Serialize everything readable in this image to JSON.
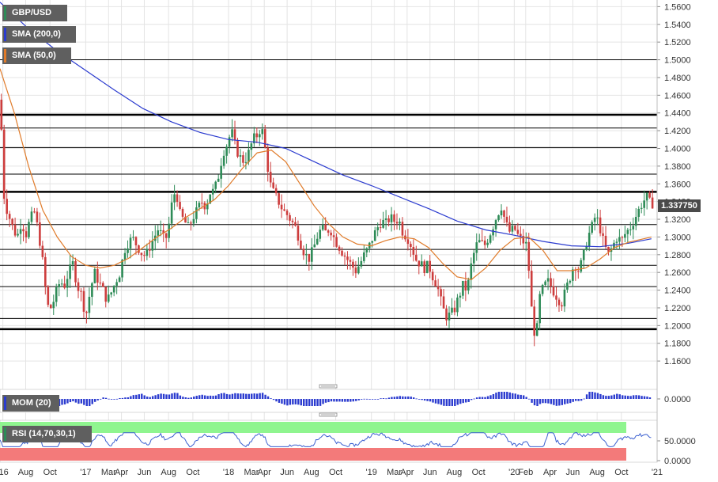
{
  "legend": {
    "price": "GBP/USD",
    "sma200": "SMA (200,0)",
    "sma50": "SMA (50,0)",
    "mom": "MOM (20)",
    "rsi": "RSI (14,70,30,1)"
  },
  "colors": {
    "up": "#2e8b57",
    "down": "#cd3d3d",
    "sma200": "#2b3bcf",
    "sma50": "#e07b2a",
    "rsi_line": "#3a5fd0",
    "rsi_overbought": "#8ff58f",
    "rsi_oversold": "#f37a7a",
    "grid": "#e4e4e4",
    "hline": "#000000",
    "price_swatch": "#2e8b57",
    "sma200_swatch": "#2b3bcf",
    "sma50_swatch": "#e07b2a",
    "mom_swatch": "#2b3bcf",
    "rsi_swatch": "#2e8b57"
  },
  "last_price": "1.337750",
  "chart_data": {
    "type": "candlestick",
    "price_axis": {
      "min": 1.14,
      "max": 1.565,
      "ticks": [
        "1.1600",
        "1.1800",
        "1.2000",
        "1.2200",
        "1.2400",
        "1.2600",
        "1.2800",
        "1.3000",
        "1.3200",
        "1.3400",
        "1.3600",
        "1.3800",
        "1.4000",
        "1.4200",
        "1.4400",
        "1.4600",
        "1.4800",
        "1.5000",
        "1.5200",
        "1.5400",
        "1.5600"
      ]
    },
    "horizontal_levels": [
      {
        "value": 1.5,
        "width": 1
      },
      {
        "value": 1.438,
        "width": 2.5
      },
      {
        "value": 1.423,
        "width": 1
      },
      {
        "value": 1.401,
        "width": 1
      },
      {
        "value": 1.371,
        "width": 1
      },
      {
        "value": 1.351,
        "width": 2.5
      },
      {
        "value": 1.314,
        "width": 1
      },
      {
        "value": 1.286,
        "width": 1
      },
      {
        "value": 1.268,
        "width": 1
      },
      {
        "value": 1.244,
        "width": 1
      },
      {
        "value": 1.208,
        "width": 1
      },
      {
        "value": 1.196,
        "width": 2.5
      }
    ],
    "time_axis": {
      "start": 2016.4,
      "end": 2021.0,
      "ticks": [
        {
          "label": "'16",
          "t": 2016.42
        },
        {
          "label": "Aug",
          "t": 2016.58
        },
        {
          "label": "Oct",
          "t": 2016.75
        },
        {
          "label": "'17",
          "t": 2017.0
        },
        {
          "label": "Mar",
          "t": 2017.16
        },
        {
          "label": "Apr",
          "t": 2017.25
        },
        {
          "label": "Jun",
          "t": 2017.41
        },
        {
          "label": "Aug",
          "t": 2017.58
        },
        {
          "label": "Oct",
          "t": 2017.75
        },
        {
          "label": "'18",
          "t": 2018.0
        },
        {
          "label": "Mar",
          "t": 2018.16
        },
        {
          "label": "Apr",
          "t": 2018.25
        },
        {
          "label": "Jun",
          "t": 2018.41
        },
        {
          "label": "Aug",
          "t": 2018.58
        },
        {
          "label": "Oct",
          "t": 2018.75
        },
        {
          "label": "'19",
          "t": 2019.0
        },
        {
          "label": "Mar",
          "t": 2019.16
        },
        {
          "label": "Apr",
          "t": 2019.25
        },
        {
          "label": "Jun",
          "t": 2019.41
        },
        {
          "label": "Aug",
          "t": 2019.58
        },
        {
          "label": "Oct",
          "t": 2019.75
        },
        {
          "label": "'20",
          "t": 2020.0
        },
        {
          "label": "Feb",
          "t": 2020.08
        },
        {
          "label": "Apr",
          "t": 2020.25
        },
        {
          "label": "Jun",
          "t": 2020.41
        },
        {
          "label": "Aug",
          "t": 2020.58
        },
        {
          "label": "Oct",
          "t": 2020.75
        },
        {
          "label": "'21",
          "t": 2021.0
        }
      ]
    },
    "price_path": [
      [
        2016.4,
        1.455
      ],
      [
        2016.42,
        1.42
      ],
      [
        2016.44,
        1.34
      ],
      [
        2016.47,
        1.325
      ],
      [
        2016.5,
        1.31
      ],
      [
        2016.53,
        1.3
      ],
      [
        2016.56,
        1.318
      ],
      [
        2016.59,
        1.302
      ],
      [
        2016.62,
        1.32
      ],
      [
        2016.65,
        1.328
      ],
      [
        2016.68,
        1.305
      ],
      [
        2016.71,
        1.27
      ],
      [
        2016.74,
        1.222
      ],
      [
        2016.77,
        1.22
      ],
      [
        2016.8,
        1.236
      ],
      [
        2016.83,
        1.25
      ],
      [
        2016.86,
        1.245
      ],
      [
        2016.89,
        1.26
      ],
      [
        2016.92,
        1.27
      ],
      [
        2016.95,
        1.245
      ],
      [
        2016.98,
        1.235
      ],
      [
        2017.01,
        1.21
      ],
      [
        2017.04,
        1.238
      ],
      [
        2017.07,
        1.26
      ],
      [
        2017.1,
        1.25
      ],
      [
        2017.13,
        1.24
      ],
      [
        2017.16,
        1.228
      ],
      [
        2017.19,
        1.238
      ],
      [
        2017.22,
        1.25
      ],
      [
        2017.25,
        1.26
      ],
      [
        2017.28,
        1.285
      ],
      [
        2017.31,
        1.295
      ],
      [
        2017.34,
        1.298
      ],
      [
        2017.37,
        1.29
      ],
      [
        2017.4,
        1.282
      ],
      [
        2017.43,
        1.278
      ],
      [
        2017.46,
        1.29
      ],
      [
        2017.49,
        1.3
      ],
      [
        2017.52,
        1.31
      ],
      [
        2017.55,
        1.298
      ],
      [
        2017.58,
        1.3
      ],
      [
        2017.61,
        1.335
      ],
      [
        2017.64,
        1.355
      ],
      [
        2017.67,
        1.325
      ],
      [
        2017.7,
        1.318
      ],
      [
        2017.73,
        1.31
      ],
      [
        2017.76,
        1.322
      ],
      [
        2017.79,
        1.33
      ],
      [
        2017.82,
        1.34
      ],
      [
        2017.85,
        1.335
      ],
      [
        2017.88,
        1.35
      ],
      [
        2017.91,
        1.352
      ],
      [
        2017.94,
        1.37
      ],
      [
        2017.97,
        1.395
      ],
      [
        2018.0,
        1.405
      ],
      [
        2018.03,
        1.42
      ],
      [
        2018.06,
        1.4
      ],
      [
        2018.09,
        1.39
      ],
      [
        2018.12,
        1.385
      ],
      [
        2018.15,
        1.395
      ],
      [
        2018.18,
        1.41
      ],
      [
        2018.21,
        1.415
      ],
      [
        2018.24,
        1.425
      ],
      [
        2018.27,
        1.395
      ],
      [
        2018.3,
        1.36
      ],
      [
        2018.33,
        1.348
      ],
      [
        2018.36,
        1.34
      ],
      [
        2018.39,
        1.33
      ],
      [
        2018.42,
        1.325
      ],
      [
        2018.45,
        1.318
      ],
      [
        2018.48,
        1.31
      ],
      [
        2018.51,
        1.295
      ],
      [
        2018.54,
        1.282
      ],
      [
        2018.57,
        1.275
      ],
      [
        2018.6,
        1.285
      ],
      [
        2018.63,
        1.3
      ],
      [
        2018.66,
        1.31
      ],
      [
        2018.69,
        1.305
      ],
      [
        2018.72,
        1.31
      ],
      [
        2018.75,
        1.298
      ],
      [
        2018.78,
        1.29
      ],
      [
        2018.81,
        1.282
      ],
      [
        2018.84,
        1.275
      ],
      [
        2018.87,
        1.268
      ],
      [
        2018.9,
        1.262
      ],
      [
        2018.93,
        1.27
      ],
      [
        2018.96,
        1.28
      ],
      [
        2018.99,
        1.288
      ],
      [
        2019.02,
        1.3
      ],
      [
        2019.05,
        1.31
      ],
      [
        2019.08,
        1.318
      ],
      [
        2019.11,
        1.315
      ],
      [
        2019.14,
        1.322
      ],
      [
        2019.17,
        1.318
      ],
      [
        2019.2,
        1.32
      ],
      [
        2019.23,
        1.305
      ],
      [
        2019.26,
        1.3
      ],
      [
        2019.29,
        1.29
      ],
      [
        2019.32,
        1.275
      ],
      [
        2019.35,
        1.27
      ],
      [
        2019.38,
        1.265
      ],
      [
        2019.41,
        1.268
      ],
      [
        2019.44,
        1.255
      ],
      [
        2019.47,
        1.245
      ],
      [
        2019.5,
        1.225
      ],
      [
        2019.53,
        1.21
      ],
      [
        2019.56,
        1.212
      ],
      [
        2019.59,
        1.218
      ],
      [
        2019.62,
        1.232
      ],
      [
        2019.65,
        1.245
      ],
      [
        2019.68,
        1.24
      ],
      [
        2019.71,
        1.27
      ],
      [
        2019.74,
        1.29
      ],
      [
        2019.77,
        1.295
      ],
      [
        2019.8,
        1.29
      ],
      [
        2019.83,
        1.3
      ],
      [
        2019.86,
        1.312
      ],
      [
        2019.89,
        1.325
      ],
      [
        2019.92,
        1.335
      ],
      [
        2019.95,
        1.315
      ],
      [
        2019.98,
        1.305
      ],
      [
        2020.01,
        1.31
      ],
      [
        2020.04,
        1.3
      ],
      [
        2020.07,
        1.295
      ],
      [
        2020.1,
        1.29
      ],
      [
        2020.13,
        1.22
      ],
      [
        2020.16,
        1.18
      ],
      [
        2020.19,
        1.235
      ],
      [
        2020.22,
        1.245
      ],
      [
        2020.25,
        1.25
      ],
      [
        2020.28,
        1.24
      ],
      [
        2020.31,
        1.232
      ],
      [
        2020.34,
        1.225
      ],
      [
        2020.37,
        1.24
      ],
      [
        2020.4,
        1.255
      ],
      [
        2020.43,
        1.27
      ],
      [
        2020.46,
        1.262
      ],
      [
        2020.49,
        1.275
      ],
      [
        2020.52,
        1.298
      ],
      [
        2020.55,
        1.31
      ],
      [
        2020.58,
        1.325
      ],
      [
        2020.61,
        1.31
      ],
      [
        2020.64,
        1.29
      ],
      [
        2020.67,
        1.28
      ],
      [
        2020.7,
        1.29
      ],
      [
        2020.73,
        1.3
      ],
      [
        2020.76,
        1.295
      ],
      [
        2020.79,
        1.305
      ],
      [
        2020.82,
        1.31
      ],
      [
        2020.85,
        1.32
      ],
      [
        2020.88,
        1.33
      ],
      [
        2020.91,
        1.34
      ],
      [
        2020.94,
        1.345
      ],
      [
        2020.96,
        1.338
      ]
    ],
    "sma200_path": [
      [
        2016.4,
        1.565
      ],
      [
        2016.6,
        1.535
      ],
      [
        2016.8,
        1.51
      ],
      [
        2017.0,
        1.488
      ],
      [
        2017.2,
        1.466
      ],
      [
        2017.4,
        1.445
      ],
      [
        2017.6,
        1.43
      ],
      [
        2017.8,
        1.418
      ],
      [
        2018.0,
        1.41
      ],
      [
        2018.2,
        1.407
      ],
      [
        2018.4,
        1.4
      ],
      [
        2018.6,
        1.385
      ],
      [
        2018.8,
        1.37
      ],
      [
        2019.0,
        1.358
      ],
      [
        2019.2,
        1.345
      ],
      [
        2019.4,
        1.332
      ],
      [
        2019.6,
        1.318
      ],
      [
        2019.8,
        1.308
      ],
      [
        2020.0,
        1.302
      ],
      [
        2020.2,
        1.295
      ],
      [
        2020.4,
        1.29
      ],
      [
        2020.6,
        1.289
      ],
      [
        2020.8,
        1.293
      ],
      [
        2020.96,
        1.298
      ]
    ],
    "sma50_path": [
      [
        2016.4,
        1.49
      ],
      [
        2016.5,
        1.44
      ],
      [
        2016.6,
        1.38
      ],
      [
        2016.7,
        1.33
      ],
      [
        2016.8,
        1.3
      ],
      [
        2016.9,
        1.278
      ],
      [
        2017.0,
        1.268
      ],
      [
        2017.1,
        1.265
      ],
      [
        2017.2,
        1.268
      ],
      [
        2017.3,
        1.276
      ],
      [
        2017.4,
        1.288
      ],
      [
        2017.5,
        1.3
      ],
      [
        2017.6,
        1.31
      ],
      [
        2017.7,
        1.322
      ],
      [
        2017.8,
        1.332
      ],
      [
        2017.9,
        1.342
      ],
      [
        2018.0,
        1.358
      ],
      [
        2018.1,
        1.378
      ],
      [
        2018.2,
        1.395
      ],
      [
        2018.3,
        1.398
      ],
      [
        2018.4,
        1.385
      ],
      [
        2018.5,
        1.36
      ],
      [
        2018.6,
        1.335
      ],
      [
        2018.7,
        1.315
      ],
      [
        2018.8,
        1.3
      ],
      [
        2018.9,
        1.292
      ],
      [
        2019.0,
        1.29
      ],
      [
        2019.1,
        1.296
      ],
      [
        2019.2,
        1.3
      ],
      [
        2019.3,
        1.298
      ],
      [
        2019.4,
        1.288
      ],
      [
        2019.5,
        1.27
      ],
      [
        2019.6,
        1.255
      ],
      [
        2019.7,
        1.252
      ],
      [
        2019.8,
        1.265
      ],
      [
        2019.9,
        1.285
      ],
      [
        2020.0,
        1.298
      ],
      [
        2020.1,
        1.3
      ],
      [
        2020.2,
        1.285
      ],
      [
        2020.3,
        1.262
      ],
      [
        2020.4,
        1.262
      ],
      [
        2020.5,
        1.265
      ],
      [
        2020.6,
        1.275
      ],
      [
        2020.7,
        1.288
      ],
      [
        2020.8,
        1.294
      ],
      [
        2020.96,
        1.3
      ]
    ],
    "mom_axis": {
      "ticks": [
        "0.0000"
      ]
    },
    "rsi_axis": {
      "ticks": [
        "50.0000",
        "0.0000"
      ],
      "overbought": 70,
      "oversold": 30
    }
  }
}
